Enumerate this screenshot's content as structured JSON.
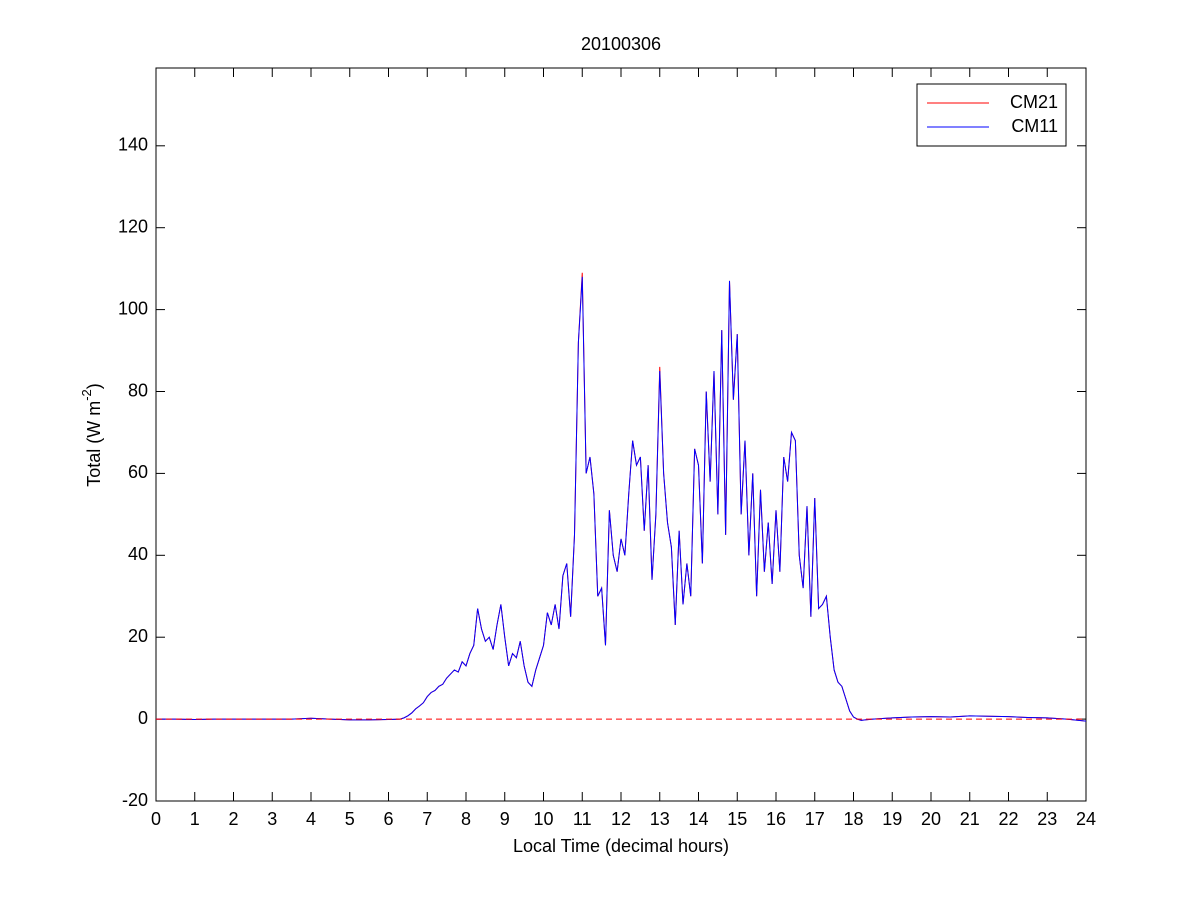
{
  "chart_data": {
    "type": "line",
    "title": "20100306",
    "xlabel": "Local Time (decimal hours)",
    "ylabel": {
      "text": "Total (W m",
      "superscript": "-2",
      "suffix": ")"
    },
    "xlim": [
      0,
      24
    ],
    "xticks": [
      0,
      1,
      2,
      3,
      4,
      5,
      6,
      7,
      8,
      9,
      10,
      11,
      12,
      13,
      14,
      15,
      16,
      17,
      18,
      19,
      20,
      21,
      22,
      23,
      24
    ],
    "ylim": [
      -20,
      159
    ],
    "yticks": [
      -20,
      0,
      20,
      40,
      60,
      80,
      100,
      120,
      140
    ],
    "grid": false,
    "legend": "top-right",
    "reference_line": {
      "value": 0,
      "color": "#ff0000",
      "style": "dashed"
    },
    "x": [
      0,
      0.5,
      1,
      1.5,
      2,
      2.5,
      3,
      3.5,
      4,
      4.5,
      5,
      5.5,
      6,
      6.3,
      6.4,
      6.5,
      6.6,
      6.7,
      6.8,
      6.9,
      7.0,
      7.1,
      7.2,
      7.3,
      7.4,
      7.5,
      7.6,
      7.7,
      7.8,
      7.9,
      8.0,
      8.1,
      8.2,
      8.3,
      8.4,
      8.5,
      8.6,
      8.7,
      8.8,
      8.9,
      9.0,
      9.1,
      9.2,
      9.3,
      9.4,
      9.5,
      9.6,
      9.7,
      9.8,
      9.9,
      10.0,
      10.1,
      10.2,
      10.3,
      10.4,
      10.5,
      10.6,
      10.7,
      10.8,
      10.9,
      11.0,
      11.1,
      11.2,
      11.3,
      11.4,
      11.5,
      11.6,
      11.7,
      11.8,
      11.9,
      12.0,
      12.1,
      12.2,
      12.3,
      12.4,
      12.5,
      12.6,
      12.7,
      12.8,
      12.9,
      13.0,
      13.1,
      13.2,
      13.3,
      13.4,
      13.5,
      13.6,
      13.7,
      13.8,
      13.9,
      14.0,
      14.1,
      14.2,
      14.3,
      14.4,
      14.5,
      14.6,
      14.7,
      14.8,
      14.9,
      15.0,
      15.1,
      15.2,
      15.3,
      15.4,
      15.5,
      15.6,
      15.7,
      15.8,
      15.9,
      16.0,
      16.1,
      16.2,
      16.3,
      16.4,
      16.5,
      16.6,
      16.7,
      16.8,
      16.9,
      17.0,
      17.1,
      17.2,
      17.3,
      17.4,
      17.5,
      17.6,
      17.7,
      17.8,
      17.9,
      18.0,
      18.1,
      18.2,
      18.3,
      18.5,
      19,
      19.5,
      20,
      20.5,
      21,
      21.5,
      22,
      22.5,
      23,
      23.5,
      24
    ],
    "series": [
      {
        "name": "CM21",
        "color": "#ff0000",
        "values": [
          0,
          0,
          -0.1,
          0,
          0,
          0,
          0,
          0,
          0.2,
          0,
          -0.2,
          -0.2,
          -0.1,
          0,
          0.3,
          0.8,
          1.5,
          2.5,
          3.2,
          4,
          5.5,
          6.5,
          7,
          8,
          8.5,
          10,
          11,
          12,
          11.5,
          14,
          13,
          16,
          18,
          27,
          22,
          19,
          20,
          17,
          23,
          28,
          20,
          13,
          16,
          15,
          19,
          13,
          9,
          8,
          12,
          15,
          18,
          26,
          23,
          28,
          22,
          35,
          38,
          25,
          45,
          92,
          109,
          60,
          64,
          55,
          30,
          32,
          18,
          51,
          40,
          36,
          44,
          40,
          55,
          68,
          62,
          64,
          46,
          62,
          34,
          50,
          86,
          60,
          48,
          42,
          23,
          46,
          28,
          38,
          30,
          66,
          62,
          38,
          80,
          58,
          85,
          50,
          95,
          45,
          107,
          78,
          94,
          50,
          68,
          40,
          60,
          30,
          56,
          36,
          48,
          33,
          51,
          36,
          64,
          58,
          70,
          68,
          40,
          32,
          52,
          25,
          54,
          27,
          28,
          30,
          20,
          12,
          9,
          8,
          5,
          2,
          0.5,
          0,
          -0.3,
          -0.2,
          0,
          0.3,
          0.5,
          0.6,
          0.5,
          0.8,
          0.7,
          0.6,
          0.4,
          0.3,
          0,
          -0.5
        ]
      },
      {
        "name": "CM11",
        "color": "#0000ff",
        "values": [
          0,
          0,
          -0.1,
          0,
          0,
          0,
          0,
          0,
          0.2,
          0,
          -0.2,
          -0.2,
          -0.1,
          0,
          0.3,
          0.8,
          1.5,
          2.5,
          3.2,
          4,
          5.5,
          6.5,
          7,
          8,
          8.5,
          10,
          11,
          12,
          11.5,
          14,
          13,
          16,
          18,
          27,
          22,
          19,
          20,
          17,
          23,
          28,
          20,
          13,
          16,
          15,
          19,
          13,
          9,
          8,
          12,
          15,
          18,
          26,
          23,
          28,
          22,
          35,
          38,
          25,
          45,
          92,
          108,
          60,
          64,
          55,
          30,
          32,
          18,
          51,
          40,
          36,
          44,
          40,
          55,
          68,
          62,
          64,
          46,
          62,
          34,
          50,
          85,
          60,
          48,
          42,
          23,
          46,
          28,
          38,
          30,
          66,
          62,
          38,
          80,
          58,
          85,
          50,
          95,
          45,
          107,
          78,
          94,
          50,
          68,
          40,
          60,
          30,
          56,
          36,
          48,
          33,
          51,
          36,
          64,
          58,
          70,
          68,
          40,
          32,
          52,
          25,
          54,
          27,
          28,
          30,
          20,
          12,
          9,
          8,
          5,
          2,
          0.5,
          0,
          -0.3,
          -0.2,
          0,
          0.3,
          0.5,
          0.6,
          0.5,
          0.8,
          0.7,
          0.6,
          0.4,
          0.3,
          0,
          -0.5
        ]
      }
    ]
  }
}
